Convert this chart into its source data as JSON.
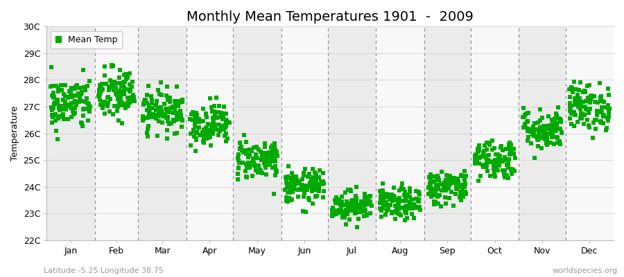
{
  "title": "Monthly Mean Temperatures 1901  -  2009",
  "ylabel": "Temperature",
  "subtitle_left": "Latitude -5.25 Longitude 38.75",
  "subtitle_right": "worldspecies.org",
  "legend_label": "Mean Temp",
  "ylim": [
    22,
    30
  ],
  "yticks": [
    22,
    23,
    24,
    25,
    26,
    27,
    28,
    29,
    30
  ],
  "ytick_labels": [
    "22C",
    "23C",
    "24C",
    "25C",
    "26C",
    "27C",
    "28C",
    "29C",
    "30C"
  ],
  "months": [
    "Jan",
    "Feb",
    "Mar",
    "Apr",
    "May",
    "Jun",
    "Jul",
    "Aug",
    "Sep",
    "Oct",
    "Nov",
    "Dec"
  ],
  "monthly_means": [
    27.1,
    27.45,
    26.85,
    26.35,
    25.05,
    24.0,
    23.3,
    23.35,
    24.0,
    25.05,
    26.15,
    27.0
  ],
  "monthly_stds": [
    0.5,
    0.5,
    0.38,
    0.38,
    0.38,
    0.32,
    0.28,
    0.3,
    0.32,
    0.38,
    0.38,
    0.45
  ],
  "n_years": 109,
  "dot_color": "#00aa00",
  "dot_size": 14,
  "bg_color": "#ffffff",
  "band_color_odd": "#ebebeb",
  "band_color_even": "#f8f8f8",
  "dashed_line_color": "#888888",
  "title_fontsize": 14,
  "axis_label_fontsize": 9,
  "tick_fontsize": 9,
  "subtitle_fontsize": 8
}
